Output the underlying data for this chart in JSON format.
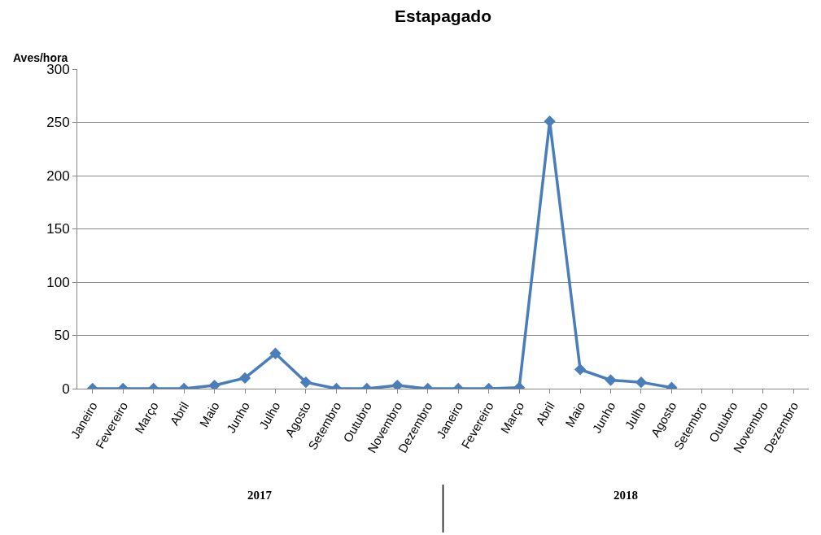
{
  "chart_data": {
    "type": "line",
    "title": "Estapagado",
    "ylabel": "Aves/hora",
    "categories": [
      "Janeiro",
      "Fevereiro",
      "Março",
      "Abril",
      "Maio",
      "Junho",
      "Julho",
      "Agosto",
      "Setembro",
      "Outubro",
      "Novembro",
      "Dezembro",
      "Janeiro",
      "Fevereiro",
      "Março",
      "Abril",
      "Maio",
      "Junho",
      "Julho",
      "Agosto",
      "Setembro",
      "Outubro",
      "Novembro",
      "Dezembro"
    ],
    "series": [
      {
        "color": "#4a7ebb",
        "values": [
          0,
          0,
          0,
          0,
          3,
          10,
          33,
          6,
          0,
          0,
          3,
          0,
          0,
          0,
          1,
          251,
          18,
          8,
          6,
          1,
          null,
          null,
          null,
          null
        ]
      }
    ],
    "annotations": [
      "2017",
      "2018"
    ],
    "ylim": [
      0,
      300
    ],
    "yticks": [
      0,
      50,
      100,
      150,
      200,
      250,
      300
    ],
    "grid": "y",
    "legend": false,
    "marker": "diamond",
    "line_style": "solid"
  }
}
